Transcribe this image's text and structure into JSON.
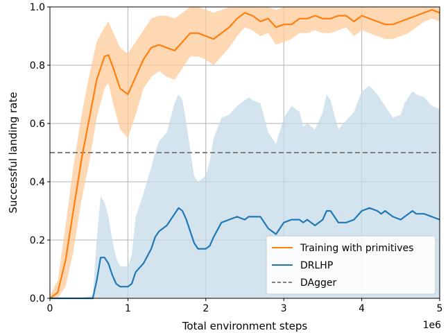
{
  "chart_data": {
    "type": "line",
    "xlabel": "Total environment steps",
    "ylabel": "Successful landing rate",
    "x_multiplier": "1e6",
    "xlim": [
      0,
      5000000
    ],
    "ylim": [
      0,
      1
    ],
    "grid": true,
    "legend_position": "lower-right",
    "x_ticks": [
      {
        "value": 0,
        "label": "0"
      },
      {
        "value": 1000000,
        "label": "1"
      },
      {
        "value": 2000000,
        "label": "2"
      },
      {
        "value": 3000000,
        "label": "3"
      },
      {
        "value": 4000000,
        "label": "4"
      },
      {
        "value": 5000000,
        "label": "5"
      }
    ],
    "y_ticks": [
      {
        "value": 0.0,
        "label": "0.0"
      },
      {
        "value": 0.2,
        "label": "0.2"
      },
      {
        "value": 0.4,
        "label": "0.4"
      },
      {
        "value": 0.6,
        "label": "0.6"
      },
      {
        "value": 0.8,
        "label": "0.8"
      },
      {
        "value": 1.0,
        "label": "1.0"
      }
    ],
    "series": [
      {
        "name": "Training with primitives",
        "color": "#ff7f0e",
        "band_color": "#fdc99a",
        "points": [
          [
            0,
            0.0
          ],
          [
            100000,
            0.02
          ],
          [
            200000,
            0.13
          ],
          [
            300000,
            0.3
          ],
          [
            400000,
            0.47
          ],
          [
            500000,
            0.61
          ],
          [
            600000,
            0.75
          ],
          [
            700000,
            0.83
          ],
          [
            750000,
            0.835
          ],
          [
            800000,
            0.8
          ],
          [
            900000,
            0.72
          ],
          [
            1000000,
            0.7
          ],
          [
            1100000,
            0.76
          ],
          [
            1200000,
            0.82
          ],
          [
            1300000,
            0.86
          ],
          [
            1400000,
            0.87
          ],
          [
            1500000,
            0.86
          ],
          [
            1600000,
            0.85
          ],
          [
            1700000,
            0.88
          ],
          [
            1800000,
            0.91
          ],
          [
            1900000,
            0.91
          ],
          [
            2000000,
            0.9
          ],
          [
            2100000,
            0.89
          ],
          [
            2200000,
            0.91
          ],
          [
            2300000,
            0.93
          ],
          [
            2400000,
            0.96
          ],
          [
            2500000,
            0.98
          ],
          [
            2600000,
            0.97
          ],
          [
            2700000,
            0.95
          ],
          [
            2800000,
            0.96
          ],
          [
            2900000,
            0.93
          ],
          [
            3000000,
            0.94
          ],
          [
            3100000,
            0.94
          ],
          [
            3200000,
            0.96
          ],
          [
            3300000,
            0.96
          ],
          [
            3400000,
            0.97
          ],
          [
            3500000,
            0.96
          ],
          [
            3600000,
            0.96
          ],
          [
            3700000,
            0.97
          ],
          [
            3800000,
            0.97
          ],
          [
            3900000,
            0.95
          ],
          [
            4000000,
            0.97
          ],
          [
            4100000,
            0.96
          ],
          [
            4200000,
            0.95
          ],
          [
            4300000,
            0.94
          ],
          [
            4400000,
            0.94
          ],
          [
            4500000,
            0.95
          ],
          [
            4600000,
            0.96
          ],
          [
            4700000,
            0.97
          ],
          [
            4800000,
            0.98
          ],
          [
            4900000,
            0.99
          ],
          [
            5000000,
            0.98
          ]
        ],
        "band_upper": [
          [
            0,
            0.01
          ],
          [
            100000,
            0.06
          ],
          [
            200000,
            0.25
          ],
          [
            300000,
            0.45
          ],
          [
            400000,
            0.62
          ],
          [
            500000,
            0.76
          ],
          [
            600000,
            0.88
          ],
          [
            700000,
            0.93
          ],
          [
            750000,
            0.95
          ],
          [
            800000,
            0.92
          ],
          [
            900000,
            0.86
          ],
          [
            1000000,
            0.84
          ],
          [
            1100000,
            0.88
          ],
          [
            1200000,
            0.92
          ],
          [
            1300000,
            0.96
          ],
          [
            1400000,
            0.97
          ],
          [
            1500000,
            0.97
          ],
          [
            1600000,
            0.96
          ],
          [
            1700000,
            0.98
          ],
          [
            1800000,
            1.0
          ],
          [
            1900000,
            1.0
          ],
          [
            2000000,
            0.99
          ],
          [
            2100000,
            0.98
          ],
          [
            2200000,
            0.99
          ],
          [
            2300000,
            1.0
          ],
          [
            2400000,
            1.0
          ],
          [
            2500000,
            1.0
          ],
          [
            2600000,
            1.0
          ],
          [
            2700000,
            1.0
          ],
          [
            2800000,
            1.0
          ],
          [
            2900000,
            0.99
          ],
          [
            3000000,
            1.0
          ],
          [
            3100000,
            1.0
          ],
          [
            3200000,
            1.0
          ],
          [
            3300000,
            1.0
          ],
          [
            3400000,
            1.0
          ],
          [
            3500000,
            1.0
          ],
          [
            3600000,
            1.0
          ],
          [
            3700000,
            1.0
          ],
          [
            3800000,
            1.0
          ],
          [
            3900000,
            1.0
          ],
          [
            4000000,
            1.0
          ],
          [
            4100000,
            1.0
          ],
          [
            4200000,
            1.0
          ],
          [
            4300000,
            1.0
          ],
          [
            4400000,
            1.0
          ],
          [
            4500000,
            1.0
          ],
          [
            4600000,
            1.0
          ],
          [
            4700000,
            1.0
          ],
          [
            4800000,
            1.0
          ],
          [
            4900000,
            1.0
          ],
          [
            5000000,
            1.0
          ]
        ],
        "band_lower": [
          [
            0,
            0.0
          ],
          [
            100000,
            0.0
          ],
          [
            200000,
            0.04
          ],
          [
            300000,
            0.16
          ],
          [
            400000,
            0.33
          ],
          [
            500000,
            0.46
          ],
          [
            600000,
            0.62
          ],
          [
            700000,
            0.72
          ],
          [
            750000,
            0.74
          ],
          [
            800000,
            0.68
          ],
          [
            900000,
            0.58
          ],
          [
            1000000,
            0.55
          ],
          [
            1100000,
            0.63
          ],
          [
            1200000,
            0.72
          ],
          [
            1300000,
            0.76
          ],
          [
            1400000,
            0.78
          ],
          [
            1500000,
            0.76
          ],
          [
            1600000,
            0.75
          ],
          [
            1700000,
            0.79
          ],
          [
            1800000,
            0.83
          ],
          [
            1900000,
            0.83
          ],
          [
            2000000,
            0.82
          ],
          [
            2100000,
            0.8
          ],
          [
            2200000,
            0.83
          ],
          [
            2300000,
            0.86
          ],
          [
            2400000,
            0.9
          ],
          [
            2500000,
            0.93
          ],
          [
            2600000,
            0.92
          ],
          [
            2700000,
            0.9
          ],
          [
            2800000,
            0.91
          ],
          [
            2900000,
            0.87
          ],
          [
            3000000,
            0.88
          ],
          [
            3100000,
            0.89
          ],
          [
            3200000,
            0.91
          ],
          [
            3300000,
            0.91
          ],
          [
            3400000,
            0.92
          ],
          [
            3500000,
            0.91
          ],
          [
            3600000,
            0.91
          ],
          [
            3700000,
            0.92
          ],
          [
            3800000,
            0.93
          ],
          [
            3900000,
            0.9
          ],
          [
            4000000,
            0.92
          ],
          [
            4100000,
            0.91
          ],
          [
            4200000,
            0.9
          ],
          [
            4300000,
            0.89
          ],
          [
            4400000,
            0.89
          ],
          [
            4500000,
            0.9
          ],
          [
            4600000,
            0.91
          ],
          [
            4700000,
            0.93
          ],
          [
            4800000,
            0.95
          ],
          [
            4900000,
            0.96
          ],
          [
            5000000,
            0.95
          ]
        ]
      },
      {
        "name": "DRLHP",
        "color": "#1f77b4",
        "band_color": "#c5dbea",
        "points": [
          [
            0,
            0.0
          ],
          [
            200000,
            0.0
          ],
          [
            400000,
            0.0
          ],
          [
            550000,
            0.0
          ],
          [
            600000,
            0.06
          ],
          [
            650000,
            0.14
          ],
          [
            700000,
            0.14
          ],
          [
            750000,
            0.12
          ],
          [
            800000,
            0.08
          ],
          [
            850000,
            0.05
          ],
          [
            900000,
            0.04
          ],
          [
            1000000,
            0.04
          ],
          [
            1050000,
            0.05
          ],
          [
            1100000,
            0.09
          ],
          [
            1200000,
            0.12
          ],
          [
            1300000,
            0.17
          ],
          [
            1350000,
            0.21
          ],
          [
            1400000,
            0.23
          ],
          [
            1500000,
            0.25
          ],
          [
            1600000,
            0.29
          ],
          [
            1650000,
            0.31
          ],
          [
            1700000,
            0.3
          ],
          [
            1750000,
            0.27
          ],
          [
            1800000,
            0.23
          ],
          [
            1850000,
            0.19
          ],
          [
            1900000,
            0.17
          ],
          [
            2000000,
            0.17
          ],
          [
            2050000,
            0.18
          ],
          [
            2100000,
            0.21
          ],
          [
            2200000,
            0.26
          ],
          [
            2300000,
            0.27
          ],
          [
            2400000,
            0.28
          ],
          [
            2500000,
            0.27
          ],
          [
            2550000,
            0.28
          ],
          [
            2600000,
            0.28
          ],
          [
            2700000,
            0.28
          ],
          [
            2800000,
            0.24
          ],
          [
            2900000,
            0.22
          ],
          [
            3000000,
            0.26
          ],
          [
            3100000,
            0.27
          ],
          [
            3200000,
            0.27
          ],
          [
            3250000,
            0.26
          ],
          [
            3300000,
            0.27
          ],
          [
            3400000,
            0.25
          ],
          [
            3500000,
            0.27
          ],
          [
            3550000,
            0.3
          ],
          [
            3600000,
            0.3
          ],
          [
            3700000,
            0.26
          ],
          [
            3800000,
            0.26
          ],
          [
            3900000,
            0.27
          ],
          [
            4000000,
            0.3
          ],
          [
            4100000,
            0.31
          ],
          [
            4200000,
            0.3
          ],
          [
            4250000,
            0.29
          ],
          [
            4300000,
            0.3
          ],
          [
            4400000,
            0.28
          ],
          [
            4500000,
            0.27
          ],
          [
            4550000,
            0.28
          ],
          [
            4650000,
            0.3
          ],
          [
            4700000,
            0.29
          ],
          [
            4800000,
            0.29
          ],
          [
            4900000,
            0.28
          ],
          [
            5000000,
            0.27
          ]
        ],
        "band_upper": [
          [
            0,
            0.0
          ],
          [
            200000,
            0.0
          ],
          [
            400000,
            0.0
          ],
          [
            550000,
            0.01
          ],
          [
            600000,
            0.2
          ],
          [
            650000,
            0.35
          ],
          [
            700000,
            0.33
          ],
          [
            750000,
            0.28
          ],
          [
            800000,
            0.2
          ],
          [
            850000,
            0.14
          ],
          [
            900000,
            0.11
          ],
          [
            1000000,
            0.11
          ],
          [
            1050000,
            0.15
          ],
          [
            1100000,
            0.28
          ],
          [
            1200000,
            0.36
          ],
          [
            1300000,
            0.45
          ],
          [
            1350000,
            0.5
          ],
          [
            1400000,
            0.54
          ],
          [
            1500000,
            0.57
          ],
          [
            1600000,
            0.67
          ],
          [
            1650000,
            0.7
          ],
          [
            1700000,
            0.68
          ],
          [
            1750000,
            0.6
          ],
          [
            1800000,
            0.51
          ],
          [
            1850000,
            0.42
          ],
          [
            1900000,
            0.4
          ],
          [
            2000000,
            0.42
          ],
          [
            2050000,
            0.47
          ],
          [
            2100000,
            0.55
          ],
          [
            2200000,
            0.62
          ],
          [
            2300000,
            0.63
          ],
          [
            2400000,
            0.66
          ],
          [
            2500000,
            0.68
          ],
          [
            2550000,
            0.69
          ],
          [
            2600000,
            0.68
          ],
          [
            2700000,
            0.67
          ],
          [
            2800000,
            0.57
          ],
          [
            2900000,
            0.53
          ],
          [
            3000000,
            0.62
          ],
          [
            3100000,
            0.66
          ],
          [
            3200000,
            0.64
          ],
          [
            3250000,
            0.59
          ],
          [
            3300000,
            0.6
          ],
          [
            3400000,
            0.58
          ],
          [
            3500000,
            0.64
          ],
          [
            3550000,
            0.7
          ],
          [
            3600000,
            0.68
          ],
          [
            3700000,
            0.58
          ],
          [
            3800000,
            0.61
          ],
          [
            3900000,
            0.64
          ],
          [
            4000000,
            0.71
          ],
          [
            4100000,
            0.73
          ],
          [
            4200000,
            0.7
          ],
          [
            4250000,
            0.68
          ],
          [
            4300000,
            0.66
          ],
          [
            4400000,
            0.62
          ],
          [
            4500000,
            0.63
          ],
          [
            4550000,
            0.67
          ],
          [
            4650000,
            0.71
          ],
          [
            4700000,
            0.7
          ],
          [
            4800000,
            0.69
          ],
          [
            4900000,
            0.66
          ],
          [
            5000000,
            0.65
          ]
        ],
        "band_lower": [
          [
            0,
            0.0
          ],
          [
            5000000,
            0.0
          ]
        ]
      }
    ],
    "reference_lines": [
      {
        "name": "DAgger",
        "y": 0.5,
        "color": "#808080",
        "style": "dashed"
      }
    ]
  }
}
